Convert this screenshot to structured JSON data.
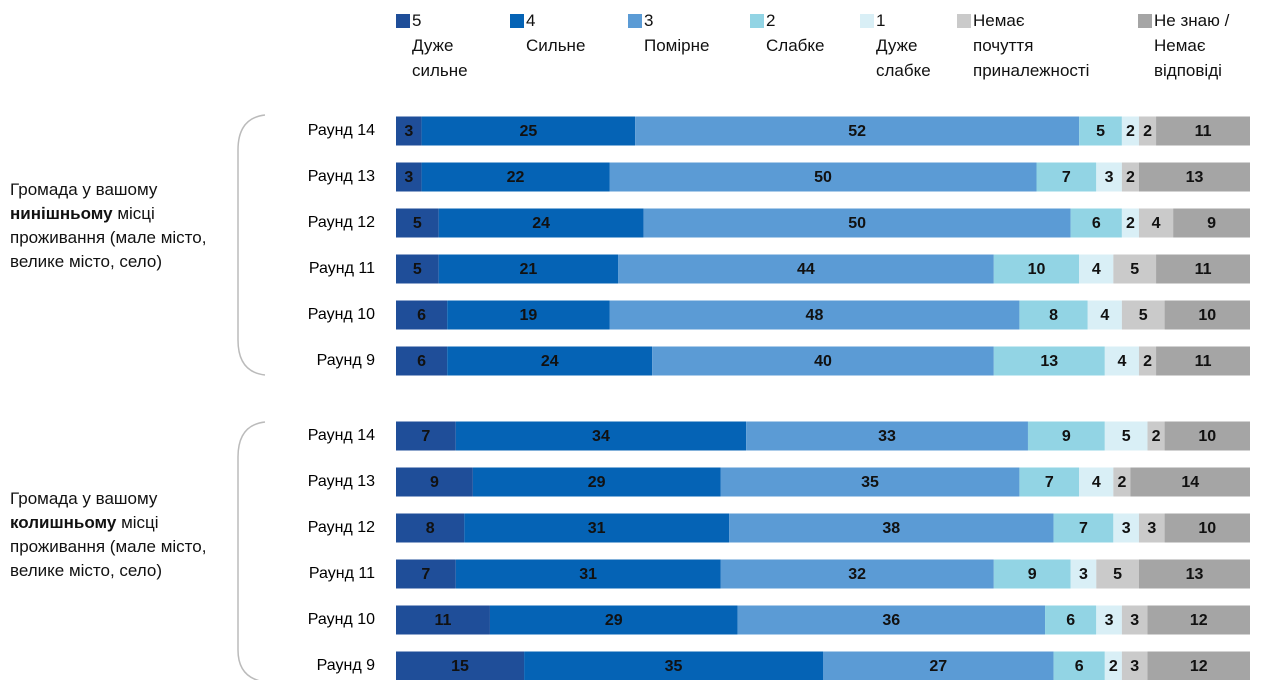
{
  "chart_data": {
    "type": "stacked-bar",
    "orientation": "horizontal",
    "xlim": [
      0,
      100
    ],
    "series": [
      {
        "name": "5\nДуже\nсильне",
        "color": "#1f4e99"
      },
      {
        "name": "4\nСильне",
        "color": "#0563b5"
      },
      {
        "name": "3\nПомірне",
        "color": "#5b9bd5"
      },
      {
        "name": "2\nСлабке",
        "color": "#92d4e4"
      },
      {
        "name": "1\nДуже\nслабке",
        "color": "#d9eff6"
      },
      {
        "name": "Немає\nпочуття\nприналежності",
        "color": "#cacaca"
      },
      {
        "name": "Не знаю /\nНемає\nвідповіді",
        "color": "#a5a5a5"
      }
    ],
    "groups": [
      {
        "label": {
          "before": "Громада у вашому",
          "bold": "нинішньому",
          "after": "місці проживання (мале місто, велике місто, село)"
        },
        "categories": [
          "Раунд 14",
          "Раунд 13",
          "Раунд 12",
          "Раунд 11",
          "Раунд 10",
          "Раунд 9"
        ],
        "series_values": [
          [
            3,
            3,
            5,
            5,
            6,
            6
          ],
          [
            25,
            22,
            24,
            21,
            19,
            24
          ],
          [
            52,
            50,
            50,
            44,
            48,
            40
          ],
          [
            5,
            7,
            6,
            10,
            8,
            13
          ],
          [
            2,
            3,
            2,
            4,
            4,
            4
          ],
          [
            2,
            2,
            4,
            5,
            5,
            2
          ],
          [
            11,
            13,
            9,
            11,
            10,
            11
          ]
        ]
      },
      {
        "label": {
          "before": "Громада у вашому",
          "bold": "колишньому",
          "after": "місці проживання (мале місто, велике місто, село)"
        },
        "categories": [
          "Раунд 14",
          "Раунд 13",
          "Раунд 12",
          "Раунд 11",
          "Раунд 10",
          "Раунд 9"
        ],
        "series_values": [
          [
            7,
            9,
            8,
            7,
            11,
            15
          ],
          [
            34,
            29,
            31,
            31,
            29,
            35
          ],
          [
            33,
            35,
            38,
            32,
            36,
            27
          ],
          [
            9,
            7,
            7,
            9,
            6,
            6
          ],
          [
            5,
            4,
            3,
            3,
            3,
            2
          ],
          [
            2,
            2,
            3,
            5,
            3,
            3
          ],
          [
            10,
            14,
            10,
            13,
            12,
            12
          ]
        ]
      }
    ]
  }
}
